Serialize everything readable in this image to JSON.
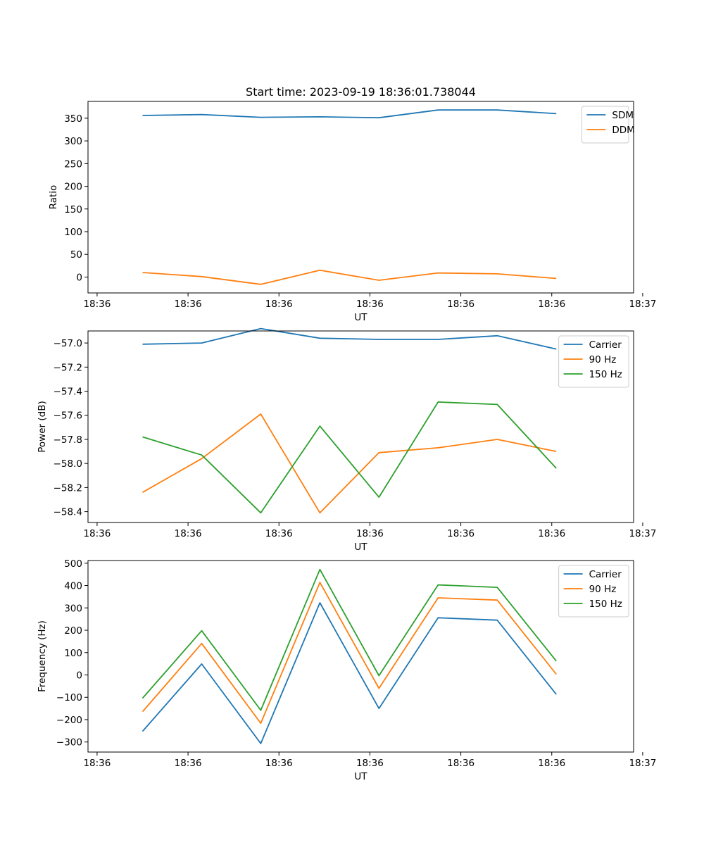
{
  "figure_title": "Start time: 2023-09-19 18:36:01.738044",
  "colors": {
    "blue": "#1f77b4",
    "orange": "#ff7f0e",
    "green": "#2ca02c"
  },
  "chart_data": [
    {
      "type": "line",
      "title": "Start time: 2023-09-19 18:36:01.738044",
      "xlabel": "UT",
      "ylabel": "Ratio",
      "x": [
        0.5,
        1.15,
        1.8,
        2.45,
        3.1,
        3.75,
        4.4,
        5.05
      ],
      "xlim": [
        -0.1,
        5.9
      ],
      "xticks": [
        0,
        1,
        2,
        3,
        4,
        5,
        6
      ],
      "xtick_labels": [
        "18:36",
        "18:36",
        "18:36",
        "18:36",
        "18:36",
        "18:36",
        "18:37"
      ],
      "ylim": [
        -35,
        387
      ],
      "yticks": [
        0,
        50,
        100,
        150,
        200,
        250,
        300,
        350
      ],
      "ytick_labels": [
        "0",
        "50",
        "100",
        "150",
        "200",
        "250",
        "300",
        "350"
      ],
      "legend": "upper right",
      "series": [
        {
          "name": "SDM",
          "color": "#1f77b4",
          "values": [
            356,
            358,
            352,
            353,
            351,
            368,
            368,
            360
          ]
        },
        {
          "name": "DDM",
          "color": "#ff7f0e",
          "values": [
            10,
            1,
            -16,
            15,
            -7,
            9,
            7,
            -3
          ]
        }
      ]
    },
    {
      "type": "line",
      "title": "",
      "xlabel": "UT",
      "ylabel": "Power (dB)",
      "x": [
        0.5,
        1.15,
        1.8,
        2.45,
        3.1,
        3.75,
        4.4,
        5.05
      ],
      "xlim": [
        -0.1,
        5.9
      ],
      "xticks": [
        0,
        1,
        2,
        3,
        4,
        5,
        6
      ],
      "xtick_labels": [
        "18:36",
        "18:36",
        "18:36",
        "18:36",
        "18:36",
        "18:36",
        "18:37"
      ],
      "ylim": [
        -58.49,
        -56.9
      ],
      "yticks": [
        -57.0,
        -57.2,
        -57.4,
        -57.6,
        -57.8,
        -58.0,
        -58.2,
        -58.4
      ],
      "ytick_labels": [
        "−57.0",
        "−57.2",
        "−57.4",
        "−57.6",
        "−57.8",
        "−58.0",
        "−58.2",
        "−58.4"
      ],
      "legend": "upper right",
      "series": [
        {
          "name": "Carrier",
          "color": "#1f77b4",
          "values": [
            -57.01,
            -57.0,
            -56.88,
            -56.96,
            -56.97,
            -56.97,
            -56.94,
            -57.05
          ]
        },
        {
          "name": "90 Hz",
          "color": "#ff7f0e",
          "values": [
            -58.24,
            -57.96,
            -57.59,
            -58.41,
            -57.91,
            -57.87,
            -57.8,
            -57.9
          ]
        },
        {
          "name": "150 Hz",
          "color": "#2ca02c",
          "values": [
            -57.78,
            -57.93,
            -58.41,
            -57.69,
            -58.28,
            -57.49,
            -57.51,
            -58.04
          ]
        }
      ]
    },
    {
      "type": "line",
      "title": "",
      "xlabel": "UT",
      "ylabel": "Frequency (Hz)",
      "x": [
        0.5,
        1.15,
        1.8,
        2.45,
        3.1,
        3.75,
        4.4,
        5.05
      ],
      "xlim": [
        -0.1,
        5.9
      ],
      "xticks": [
        0,
        1,
        2,
        3,
        4,
        5,
        6
      ],
      "xtick_labels": [
        "18:36",
        "18:36",
        "18:36",
        "18:36",
        "18:36",
        "18:36",
        "18:37"
      ],
      "ylim": [
        -345,
        512
      ],
      "yticks": [
        500,
        400,
        300,
        200,
        100,
        0,
        -100,
        -200,
        -300
      ],
      "ytick_labels": [
        "500",
        "400",
        "300",
        "200",
        "100",
        "0",
        "−100",
        "−200",
        "−300"
      ],
      "legend": "upper right",
      "series": [
        {
          "name": "Carrier",
          "color": "#1f77b4",
          "values": [
            -252,
            49,
            -307,
            323,
            -150,
            256,
            245,
            -87
          ]
        },
        {
          "name": "90 Hz",
          "color": "#ff7f0e",
          "values": [
            -164,
            141,
            -216,
            414,
            -60,
            345,
            335,
            3
          ]
        },
        {
          "name": "150 Hz",
          "color": "#2ca02c",
          "values": [
            -104,
            198,
            -158,
            472,
            -3,
            403,
            392,
            62
          ]
        }
      ]
    }
  ]
}
